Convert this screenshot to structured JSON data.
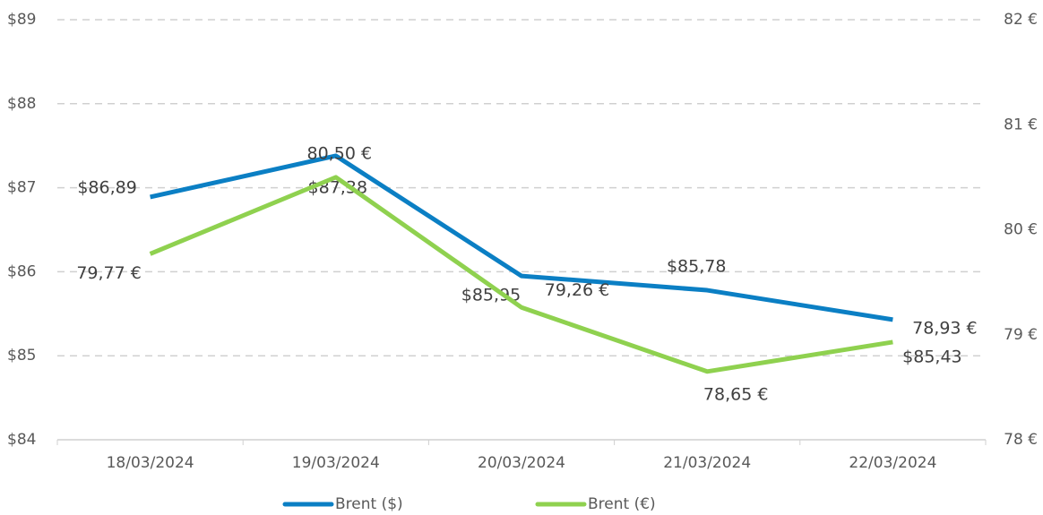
{
  "chart_data": {
    "type": "line",
    "categories": [
      "18/03/2024",
      "19/03/2024",
      "20/03/2024",
      "21/03/2024",
      "22/03/2024"
    ],
    "series": [
      {
        "name": "Brent ($)",
        "color": "#0b7fc4",
        "values": [
          86.89,
          87.38,
          85.95,
          85.78,
          85.43
        ],
        "value_labels": [
          "$86,89",
          "$87,38",
          "$85,95",
          "$85,78",
          "$85,43"
        ]
      },
      {
        "name": "Brent (€)",
        "color": "#8fd14f",
        "axis": "y2",
        "values": [
          79.77,
          80.5,
          79.26,
          78.65,
          78.93
        ],
        "value_labels": [
          "79,77 €",
          "80,50 €",
          "79,26 €",
          "78,65 €",
          "78,93 €"
        ]
      }
    ],
    "ylim": [
      84,
      89
    ],
    "yticks": [
      {
        "value": 84,
        "label": "$84"
      },
      {
        "value": 85,
        "label": "$85"
      },
      {
        "value": 86,
        "label": "$86"
      },
      {
        "value": 87,
        "label": "$87"
      },
      {
        "value": 88,
        "label": "$88"
      },
      {
        "value": 89,
        "label": "$89"
      }
    ],
    "y2lim": [
      78,
      82
    ],
    "y2ticks": [
      {
        "value": 78,
        "label": "78 €"
      },
      {
        "value": 79,
        "label": "79 €"
      },
      {
        "value": 80,
        "label": "80 €"
      },
      {
        "value": 81,
        "label": "81 €"
      },
      {
        "value": 82,
        "label": "82 €"
      }
    ],
    "grid": true
  }
}
